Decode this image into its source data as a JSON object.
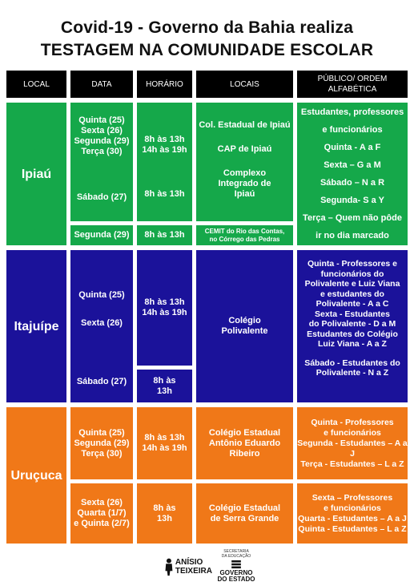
{
  "title": {
    "line1": "Covid-19 - Governo da Bahia realiza",
    "line2": "TESTAGEM NA COMUNIDADE ESCOLAR"
  },
  "headers": [
    "LOCAL",
    "DATA",
    "HORÁRIO",
    "LOCAIS",
    "PÚBLICO/ ORDEM ALFABÉTICA"
  ],
  "colors": {
    "green": "#15a84a",
    "blue": "#1b129a",
    "orange": "#f07818",
    "header": "#000000"
  },
  "ipiau": {
    "city": "Ipiaú",
    "dates_a": [
      "Quinta (25)",
      "Sexta (26)",
      "Segunda (29)",
      "Terça (30)"
    ],
    "date_b": "Sábado (27)",
    "date_c": "Segunda (29)",
    "hours_a": [
      "8h às 13h",
      "14h às 19h"
    ],
    "hours_b": "8h às 13h",
    "hours_c": "8h às 13h",
    "places": [
      "Col. Estadual de Ipiaú",
      "CAP de Ipiaú",
      "Complexo Integrado de   Ipiaú"
    ],
    "place_c": [
      "CEMIT do Rio das Contas,",
      "no Córrego das Pedras"
    ],
    "public": [
      "Estudantes, professores",
      "e funcionários",
      "Quinta - A a F",
      "Sexta – G a M",
      "Sábado – N a R",
      "Segunda- S a Y",
      "Terça – Quem não pôde",
      "ir no dia marcado"
    ]
  },
  "itajuipe": {
    "city": "Itajuípe",
    "dates": [
      "Quinta (25)",
      "Sexta (26)",
      "Sábado (27)"
    ],
    "hours_a": [
      "8h às 13h",
      "14h às 19h"
    ],
    "hours_b": [
      "8h às",
      "13h"
    ],
    "place": [
      "Colégio",
      "Polivalente"
    ],
    "public_a": [
      "Quinta - Professores e",
      "funcionários do",
      "Polivalente e Luiz Viana",
      "e estudantes do",
      "Polivalente - A a  C",
      "Sexta - Estudantes",
      "do Polivalente - D a  M",
      "Estudantes do Colégio",
      "Luiz Viana -  A a Z"
    ],
    "public_b": [
      "Sábado - Estudantes do",
      "Polivalente - N a Z"
    ]
  },
  "urucuca": {
    "city": "Uruçuca",
    "dates_a": [
      "Quinta (25)",
      "Segunda  (29)",
      "Terça (30)"
    ],
    "dates_b": [
      "Sexta  (26)",
      "Quarta  (1/7)",
      "e Quinta (2/7)"
    ],
    "hours_a": [
      "8h às 13h",
      "14h às 19h"
    ],
    "hours_b": [
      "8h às",
      "13h"
    ],
    "place_a": [
      "Colégio Estadual",
      "Antônio Eduardo",
      "Ribeiro"
    ],
    "place_b": [
      "Colégio Estadual",
      "de Serra Grande"
    ],
    "public_a": [
      "Quinta - Professores",
      "e funcionários",
      "Segunda - Estudantes – A a J",
      "Terça - Estudantes – L a Z"
    ],
    "public_b": [
      "Sexta – Professores",
      "e funcionários",
      "Quarta - Estudantes – A a J",
      "Quinta - Estudantes – L a Z"
    ]
  },
  "logos": {
    "anisio": [
      "ANÍSIO",
      "TEIXEIRA"
    ],
    "secretaria": [
      "SECRETARIA",
      "DA EDUCAÇÃO"
    ],
    "governo": [
      "GOVERNO",
      "DO ESTADO"
    ]
  }
}
